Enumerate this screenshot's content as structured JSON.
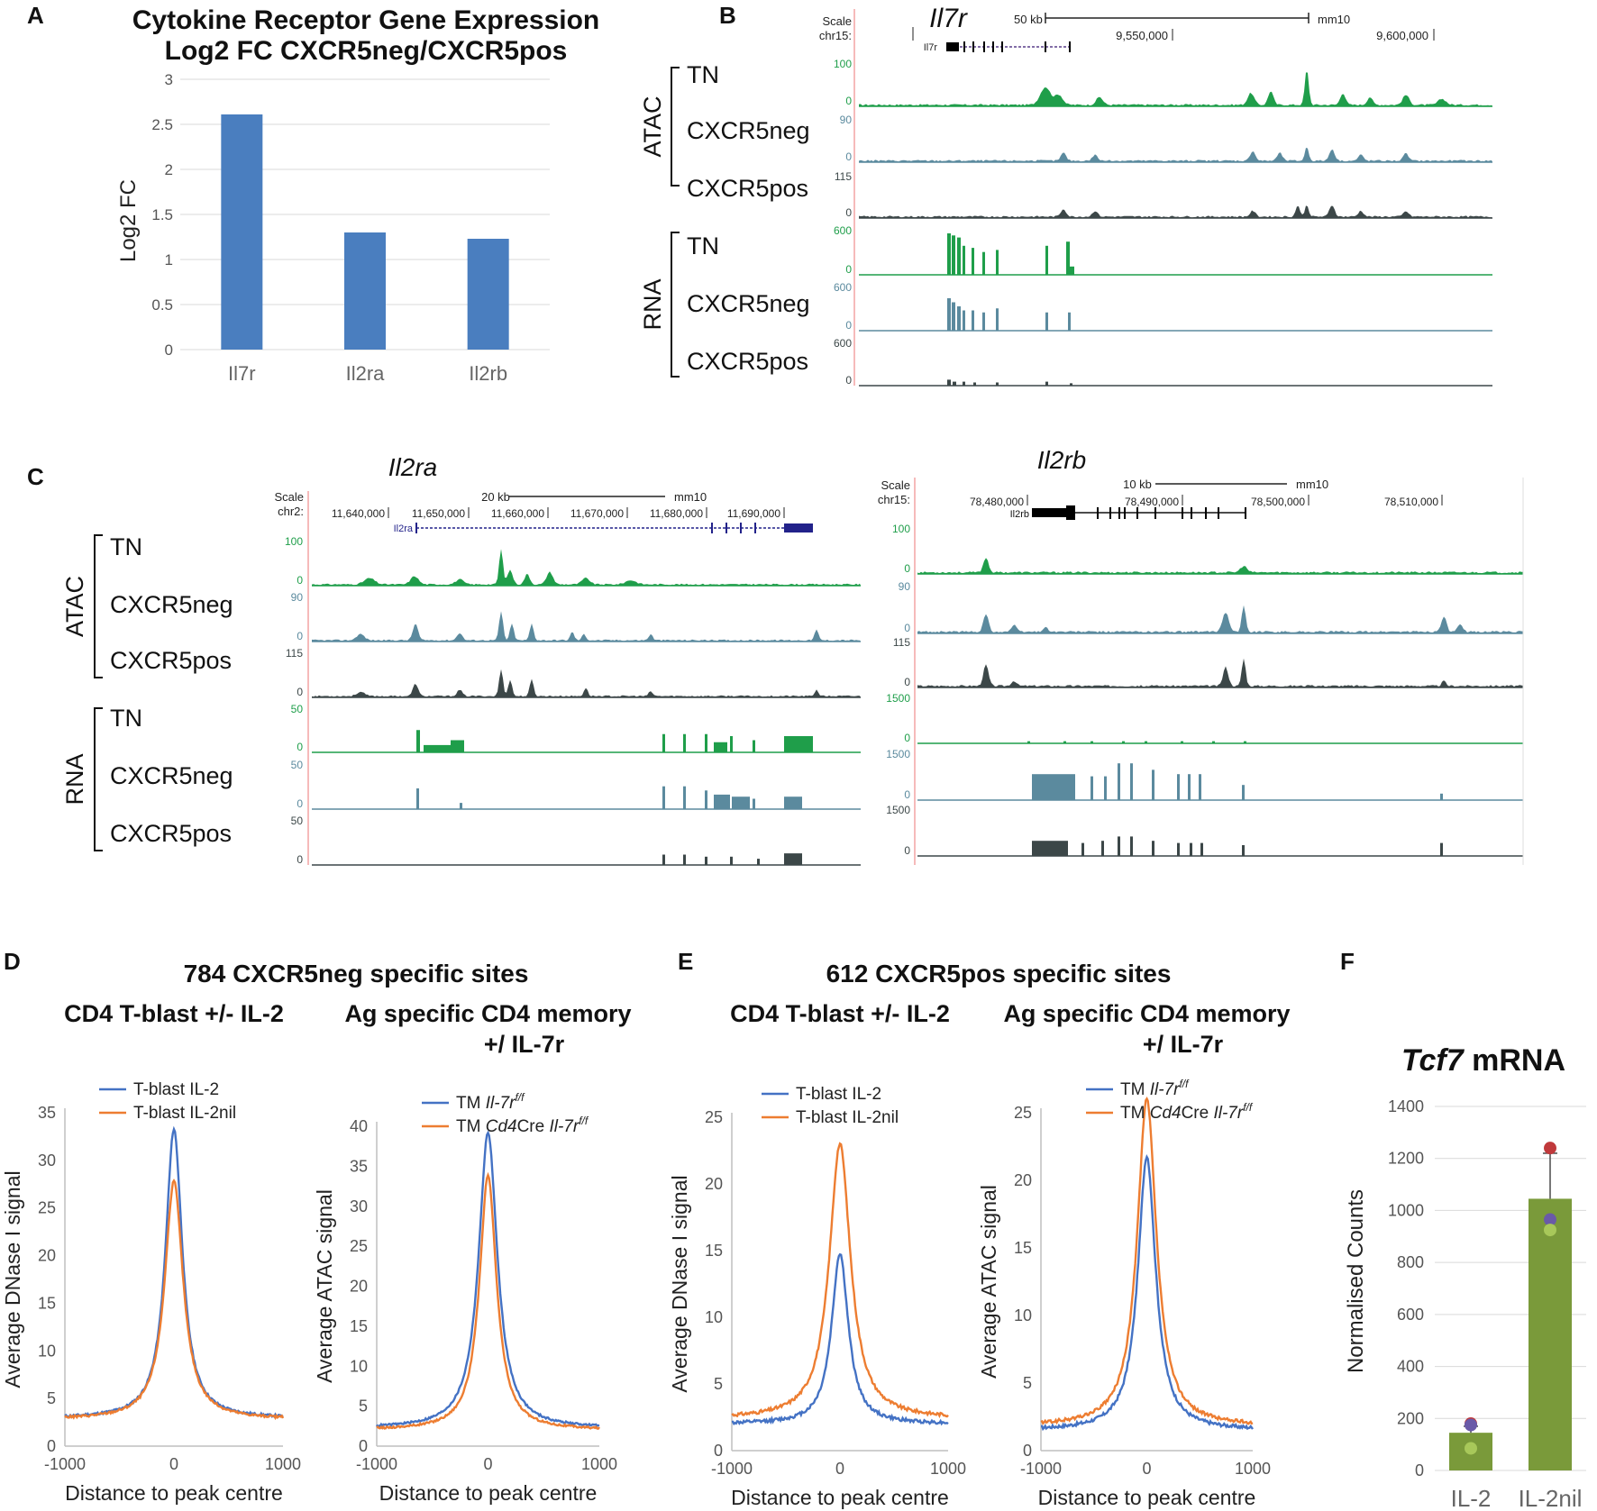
{
  "panels": {
    "A": "A",
    "B": "B",
    "C": "C",
    "D": "D",
    "E": "E",
    "F": "F"
  },
  "chart_data": [
    {
      "panel": "A",
      "type": "bar",
      "title_line1": "Cytokine Receptor Gene Expression",
      "title_line2": "Log2 FC CXCR5neg/CXCR5pos",
      "ylabel": "Log2 FC",
      "xlabel": "",
      "categories": [
        "Il7r",
        "Il2ra",
        "Il2rb"
      ],
      "values": [
        2.61,
        1.3,
        1.23
      ],
      "ylim": [
        0,
        3
      ],
      "yticks": [
        "0",
        "0.5",
        "1",
        "1.5",
        "2",
        "2.5",
        "3"
      ],
      "grid": true,
      "color": "#4a7ebf"
    },
    {
      "panel": "B",
      "type": "genome-browser",
      "gene": "Il7r",
      "scale_label": "Scale",
      "chrom": "chr15:",
      "scale_bar": "50 kb",
      "assembly": "mm10",
      "coords": [
        "9,550,000",
        "9,600,000"
      ],
      "gene_model": "Il7r",
      "groups": [
        "ATAC",
        "RNA"
      ],
      "tracks": [
        {
          "group": "ATAC",
          "label": "TN",
          "max": "100",
          "min": "0",
          "color": "#1f9e4a"
        },
        {
          "group": "ATAC",
          "label": "CXCR5neg",
          "max": "90",
          "min": "0",
          "color": "#5b8a9e"
        },
        {
          "group": "ATAC",
          "label": "CXCR5pos",
          "max": "115",
          "min": "0",
          "color": "#3c4748"
        },
        {
          "group": "RNA",
          "label": "TN",
          "max": "600",
          "min": "0",
          "color": "#1f9e4a"
        },
        {
          "group": "RNA",
          "label": "CXCR5neg",
          "max": "600",
          "min": "0",
          "color": "#5b8a9e"
        },
        {
          "group": "RNA",
          "label": "CXCR5pos",
          "max": "600",
          "min": "0",
          "color": "#3c4748"
        }
      ]
    },
    {
      "panel": "C-left",
      "type": "genome-browser",
      "gene": "Il2ra",
      "scale_label": "Scale",
      "chrom": "chr2:",
      "scale_bar": "20 kb",
      "assembly": "mm10",
      "coords": [
        "11,640,000",
        "11,650,000",
        "11,660,000",
        "11,670,000",
        "11,680,000",
        "11,690,000"
      ],
      "gene_model": "Il2ra",
      "groups": [
        "ATAC",
        "RNA"
      ],
      "tracks": [
        {
          "group": "ATAC",
          "label": "TN",
          "max": "100",
          "min": "0",
          "color": "#1f9e4a"
        },
        {
          "group": "ATAC",
          "label": "CXCR5neg",
          "max": "90",
          "min": "0",
          "color": "#5b8a9e"
        },
        {
          "group": "ATAC",
          "label": "CXCR5pos",
          "max": "115",
          "min": "0",
          "color": "#3c4748"
        },
        {
          "group": "RNA",
          "label": "TN",
          "max": "50",
          "min": "0",
          "color": "#1f9e4a"
        },
        {
          "group": "RNA",
          "label": "CXCR5neg",
          "max": "50",
          "min": "0",
          "color": "#5b8a9e"
        },
        {
          "group": "RNA",
          "label": "CXCR5pos",
          "max": "50",
          "min": "0",
          "color": "#3c4748"
        }
      ]
    },
    {
      "panel": "C-right",
      "type": "genome-browser",
      "gene": "Il2rb",
      "scale_label": "Scale",
      "chrom": "chr15:",
      "scale_bar": "10 kb",
      "assembly": "mm10",
      "coords": [
        "78,480,000",
        "78,490,000",
        "78,500,000",
        "78,510,000"
      ],
      "gene_model": "Il2rb",
      "tracks": [
        {
          "label": "TN-ATAC",
          "max": "100",
          "min": "0",
          "color": "#1f9e4a"
        },
        {
          "label": "CXCR5neg-ATAC",
          "max": "90",
          "min": "0",
          "color": "#5b8a9e"
        },
        {
          "label": "CXCR5pos-ATAC",
          "max": "115",
          "min": "0",
          "color": "#3c4748"
        },
        {
          "label": "TN-RNA",
          "max": "1500",
          "min": "0",
          "color": "#1f9e4a"
        },
        {
          "label": "CXCR5neg-RNA",
          "max": "1500",
          "min": "0",
          "color": "#5b8a9e"
        },
        {
          "label": "CXCR5pos-RNA",
          "max": "1500",
          "min": "0",
          "color": "#3c4748"
        }
      ]
    },
    {
      "panel": "D",
      "type": "line",
      "header": "784 CXCR5neg specific sites",
      "subplots": [
        {
          "title_line1": "CD4 T-blast +/- IL-2",
          "title_line2": "",
          "ylabel": "Average DNase I signal",
          "xlabel": "Distance to peak centre",
          "xlim": [
            -1000,
            1000
          ],
          "ylim": [
            0,
            35
          ],
          "yticks": [
            "0",
            "5",
            "10",
            "15",
            "20",
            "25",
            "30",
            "35"
          ],
          "xticks": [
            "-1000",
            "0",
            "1000"
          ],
          "series": [
            {
              "name": "T-blast IL-2",
              "color": "#4472c4",
              "peak": 33.3,
              "base": 2.9,
              "width": 110
            },
            {
              "name": "T-blast IL-2nil",
              "color": "#ed7d31",
              "peak": 27.8,
              "base": 2.8,
              "width": 120
            }
          ]
        },
        {
          "title_line1": "Ag specific CD4 memory",
          "title_line2": "+/ IL-7r",
          "ylabel": "Average ATAC signal",
          "xlabel": "Distance to peak centre",
          "xlim": [
            -1000,
            1000
          ],
          "ylim": [
            0,
            40
          ],
          "yticks": [
            "0",
            "5",
            "10",
            "15",
            "20",
            "25",
            "30",
            "35",
            "40"
          ],
          "xticks": [
            "-1000",
            "0",
            "1000"
          ],
          "series": [
            {
              "name": "TM Il-7rf/f",
              "name_prefix": "TM ",
              "name_italic": "Il-7r",
              "name_sup": "f/f",
              "color": "#4472c4",
              "peak": 39.2,
              "base": 2.2,
              "width": 120
            },
            {
              "name": "TM Cd4Cre Il-7rf/f",
              "name_prefix": "TM ",
              "name_italic": "Cd4",
              "name_mid": "Cre ",
              "name_italic2": "Il-7r",
              "name_sup": "f/f",
              "color": "#ed7d31",
              "peak": 33.8,
              "base": 2.0,
              "width": 110
            }
          ]
        }
      ]
    },
    {
      "panel": "E",
      "type": "line",
      "header": "612 CXCR5pos specific sites",
      "subplots": [
        {
          "title_line1": "CD4 T-blast +/- IL-2",
          "title_line2": "",
          "ylabel": "Average DNase I signal",
          "xlabel": "Distance to peak centre",
          "xlim": [
            -1000,
            1000
          ],
          "ylim": [
            0,
            25
          ],
          "yticks": [
            "0",
            "5",
            "10",
            "15",
            "20",
            "25"
          ],
          "xticks": [
            "-1000",
            "0",
            "1000"
          ],
          "series": [
            {
              "name": "T-blast IL-2",
              "color": "#4472c4",
              "peak": 14.8,
              "base": 2.0,
              "width": 110
            },
            {
              "name": "T-blast IL-2nil",
              "color": "#ed7d31",
              "peak": 23.0,
              "base": 2.4,
              "width": 140
            }
          ]
        },
        {
          "title_line1": "Ag specific CD4 memory",
          "title_line2": "+/ IL-7r",
          "ylabel": "Average ATAC signal",
          "xlabel": "Distance to peak centre",
          "xlim": [
            -1000,
            1000
          ],
          "ylim": [
            0,
            25
          ],
          "yticks": [
            "0",
            "5",
            "10",
            "15",
            "20",
            "25"
          ],
          "xticks": [
            "-1000",
            "0",
            "1000"
          ],
          "series": [
            {
              "name": "TM Il-7rf/f",
              "name_prefix": "TM ",
              "name_italic": "Il-7r",
              "name_sup": "f/f",
              "color": "#4472c4",
              "peak": 21.8,
              "base": 1.5,
              "width": 120
            },
            {
              "name": "TM Cd4Cre Il-7rf/f",
              "name_prefix": "TM ",
              "name_italic": "Cd4",
              "name_mid": "Cre ",
              "name_italic2": "Il-7r",
              "name_sup": "f/f",
              "color": "#ed7d31",
              "peak": 26.0,
              "base": 1.8,
              "width": 130
            }
          ]
        }
      ]
    },
    {
      "panel": "F",
      "type": "bar",
      "title_italic": "Tcf7",
      "title_rest": " mRNA",
      "ylabel": "Normalised Counts",
      "categories": [
        "IL-2",
        "IL-2nil"
      ],
      "values": [
        145,
        1045
      ],
      "errors": [
        25,
        175
      ],
      "ylim": [
        0,
        1400
      ],
      "yticks": [
        "0",
        "200",
        "400",
        "600",
        "800",
        "1000",
        "1200",
        "1400"
      ],
      "bar_color": "#7a9a3a",
      "points": [
        {
          "category": "IL-2",
          "value": 180,
          "color": "#c0393b"
        },
        {
          "category": "IL-2",
          "value": 175,
          "color": "#6a5aa8"
        },
        {
          "category": "IL-2",
          "value": 85,
          "color": "#a8c85a"
        },
        {
          "category": "IL-2nil",
          "value": 1240,
          "color": "#c0393b"
        },
        {
          "category": "IL-2nil",
          "value": 965,
          "color": "#6a5aa8"
        },
        {
          "category": "IL-2nil",
          "value": 925,
          "color": "#a8c85a"
        }
      ]
    }
  ]
}
